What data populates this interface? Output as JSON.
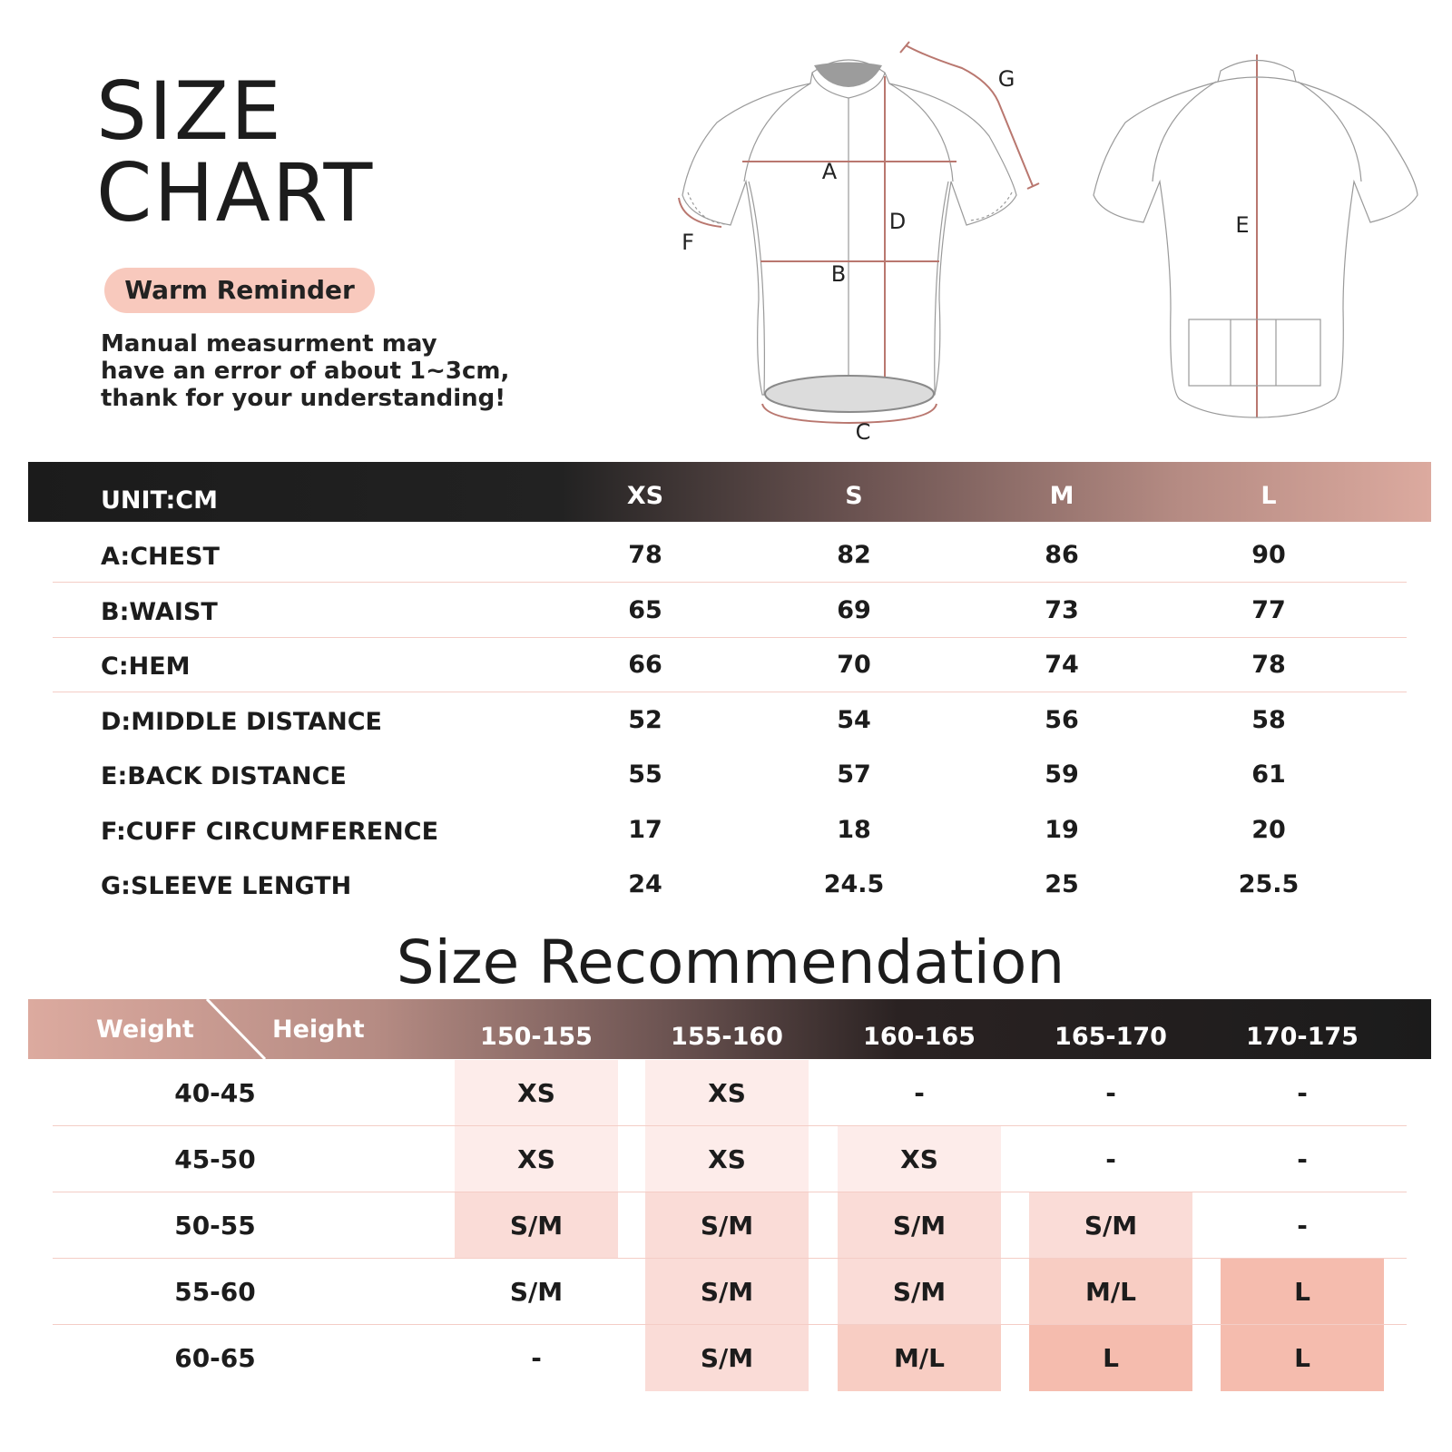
{
  "header": {
    "title_line1": "SIZE",
    "title_line2": "CHART",
    "reminder": "Warm Reminder",
    "note_lines": [
      "Manual measurment may",
      "have an error of about 1~3cm,",
      "thank for your understanding!"
    ]
  },
  "diagram": {
    "labels": [
      "A",
      "B",
      "C",
      "D",
      "E",
      "F",
      "G"
    ],
    "accent_color": "#b9776f"
  },
  "spec_table": {
    "unit": "UNIT:CM",
    "sizes": [
      "XS",
      "S",
      "M",
      "L"
    ],
    "rows": [
      {
        "label": "A:CHEST",
        "values": [
          "78",
          "82",
          "86",
          "90"
        ]
      },
      {
        "label": "B:WAIST",
        "values": [
          "65",
          "69",
          "73",
          "77"
        ]
      },
      {
        "label": "C:HEM",
        "values": [
          "66",
          "70",
          "74",
          "78"
        ]
      },
      {
        "label": "D:MIDDLE DISTANCE",
        "values": [
          "52",
          "54",
          "56",
          "58"
        ]
      },
      {
        "label": "E:BACK DISTANCE",
        "values": [
          "55",
          "57",
          "59",
          "61"
        ]
      },
      {
        "label": "F:CUFF CIRCUMFERENCE",
        "values": [
          "17",
          "18",
          "19",
          "20"
        ]
      },
      {
        "label": "G:SLEEVE LENGTH",
        "values": [
          "24",
          "24.5",
          "25",
          "25.5"
        ]
      }
    ]
  },
  "recommendation": {
    "title": "Size Recommendation",
    "weight_label": "Weight",
    "height_label": "Height",
    "heights": [
      "150-155",
      "155-160",
      "160-165",
      "165-170",
      "170-175"
    ],
    "shade_colors": [
      "#ffffff",
      "#fdecea",
      "#fadcd7",
      "#f8cdc3",
      "#f5bcae"
    ],
    "rows": [
      {
        "weight": "40-45",
        "sizes": [
          "XS",
          "XS",
          "-",
          "-",
          "-"
        ],
        "shade": [
          1,
          1,
          0,
          0,
          0
        ]
      },
      {
        "weight": "45-50",
        "sizes": [
          "XS",
          "XS",
          "XS",
          "-",
          "-"
        ],
        "shade": [
          1,
          1,
          1,
          0,
          0
        ]
      },
      {
        "weight": "50-55",
        "sizes": [
          "S/M",
          "S/M",
          "S/M",
          "S/M",
          "-"
        ],
        "shade": [
          2,
          2,
          2,
          2,
          0
        ]
      },
      {
        "weight": "55-60",
        "sizes": [
          "S/M",
          "S/M",
          "S/M",
          "M/L",
          "L"
        ],
        "shade": [
          0,
          2,
          2,
          3,
          4
        ]
      },
      {
        "weight": "60-65",
        "sizes": [
          "-",
          "S/M",
          "M/L",
          "L",
          "L"
        ],
        "shade": [
          0,
          2,
          3,
          4,
          4
        ]
      }
    ]
  }
}
